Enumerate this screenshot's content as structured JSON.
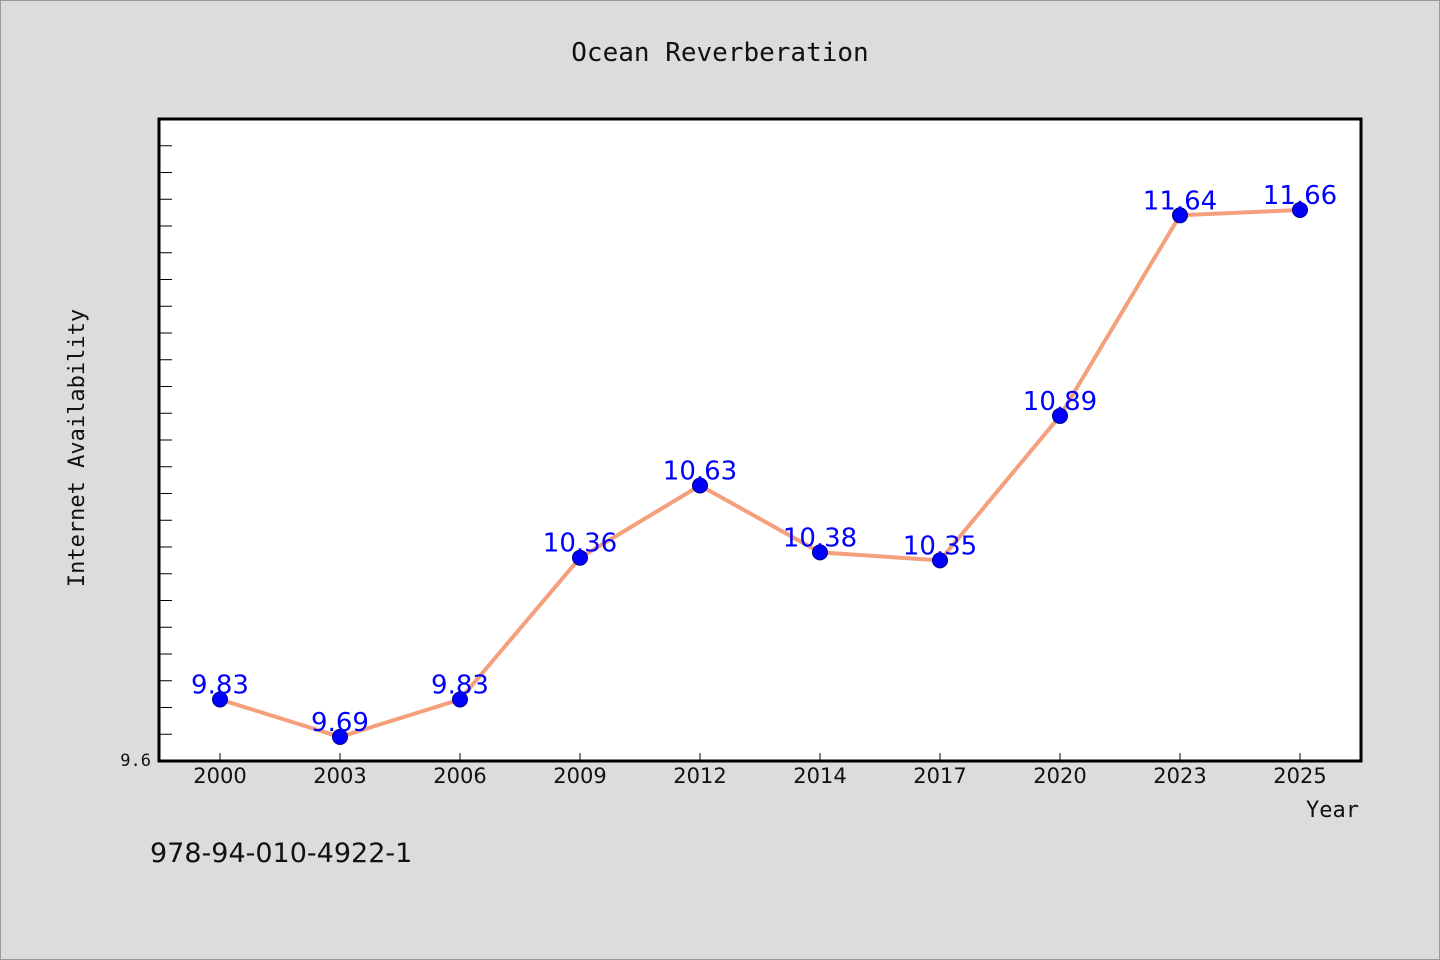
{
  "chart_data": {
    "type": "line",
    "title": "Ocean Reverberation",
    "xlabel": "Year",
    "ylabel": "Internet Availability",
    "categories": [
      "2000",
      "2003",
      "2006",
      "2009",
      "2012",
      "2014",
      "2017",
      "2020",
      "2023",
      "2025"
    ],
    "series": [
      {
        "values": [
          9.83,
          9.69,
          9.83,
          10.36,
          10.63,
          10.38,
          10.35,
          10.89,
          11.64,
          11.66
        ]
      }
    ],
    "data_labels": [
      "9.83",
      "9.69",
      "9.83",
      "10.36",
      "10.63",
      "10.38",
      "10.35",
      "10.89",
      "11.64",
      "11.66"
    ],
    "ylim": [
      9.6,
      12.0
    ],
    "y_tick_labels": [
      "9.6"
    ],
    "grid": false,
    "line_color": "#f4a07c",
    "marker_color": "#0000ff",
    "label_color": "#0000ff",
    "background_color": "#dcdcdc",
    "plot_background_color": "#ffffff"
  },
  "footnote": "978-94-010-4922-1"
}
